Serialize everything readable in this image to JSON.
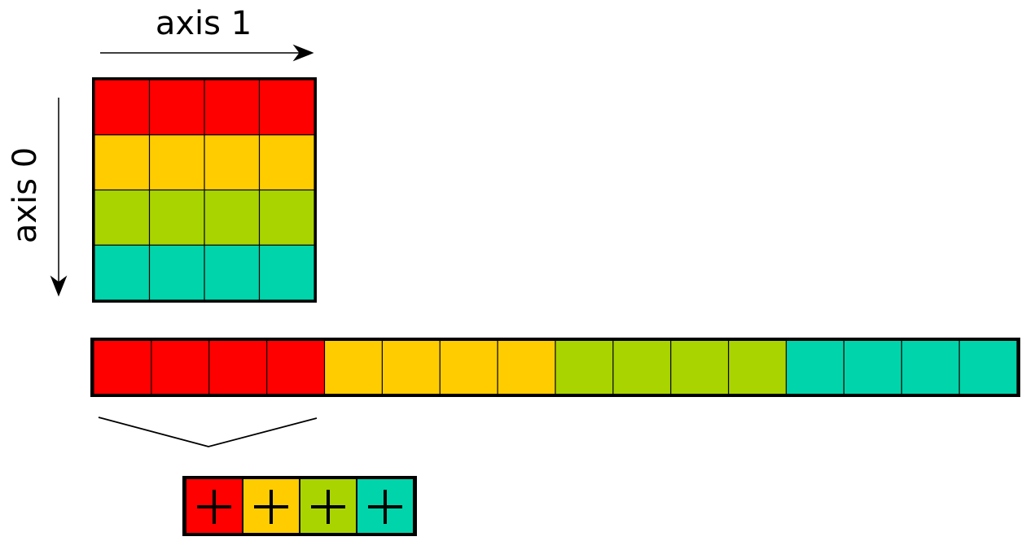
{
  "labels": {
    "axis_1": "axis 1",
    "axis_0": "axis 0"
  },
  "grid": {
    "rows": 4,
    "cols": 4,
    "row_colors": [
      "#ff0000",
      "#ffcc00",
      "#aad400",
      "#00d4aa"
    ]
  },
  "flattened": {
    "cells": 16,
    "segment_colors": [
      "#ff0000",
      "#ffcc00",
      "#aad400",
      "#00d4aa"
    ],
    "cells_per_segment": 4
  },
  "result": {
    "symbol": "+",
    "colors": [
      "#ff0000",
      "#ffcc00",
      "#aad400",
      "#00d4aa"
    ]
  },
  "colors": {
    "border": "#000000",
    "background": "#ffffff"
  }
}
